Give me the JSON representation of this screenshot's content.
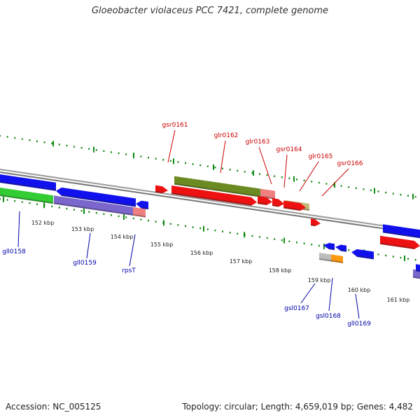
{
  "title": "Gloeobacter violaceus PCC 7421, complete genome",
  "footer": {
    "accession": "Accession: NC_005125",
    "topology": "Topology: circular; Length: 4,659,019 bp; Genes: 4,482"
  },
  "colors": {
    "forward_label": "#cc0000",
    "reverse_label": "#0000aa",
    "backbone": "#8a8a8a",
    "ticks": "#138a13",
    "gene_red": "#ee1111",
    "gene_blue": "#1111ee",
    "gene_olive": "#6b8a22",
    "gene_pink": "#ee8080",
    "gene_khaki": "#c2b878",
    "gene_purple": "#7a66cc",
    "gene_green": "#33cc33",
    "gene_gray": "#bdbdbd",
    "gene_orange": "#ff9911"
  },
  "scale": {
    "kbp_labels": [
      "152 kbp",
      "153 kbp",
      "154 kbp",
      "155 kbp",
      "156 kbp",
      "157 kbp",
      "158 kbp",
      "159 kbp",
      "160 kbp",
      "161 kbp"
    ]
  },
  "genes": {
    "forward": [
      {
        "label": "gsr0161",
        "color": "gene_red"
      },
      {
        "label": "glr0162",
        "color": "gene_olive"
      },
      {
        "label": "glr0163",
        "color": "gene_pink"
      },
      {
        "label": "gsr0164",
        "color": "gene_red"
      },
      {
        "label": "glr0165",
        "color": "gene_khaki"
      },
      {
        "label": "gsr0166",
        "color": "gene_red"
      }
    ],
    "reverse": [
      {
        "label": "gll0158",
        "color": "gene_blue"
      },
      {
        "label": "gll0159",
        "color": "gene_purple"
      },
      {
        "label": "rpsT",
        "color": "gene_pink"
      },
      {
        "label": "gsl0167",
        "color": "gene_gray"
      },
      {
        "label": "gsl0168",
        "color": "gene_orange"
      },
      {
        "label": "gll0169",
        "color": "gene_blue"
      }
    ]
  }
}
